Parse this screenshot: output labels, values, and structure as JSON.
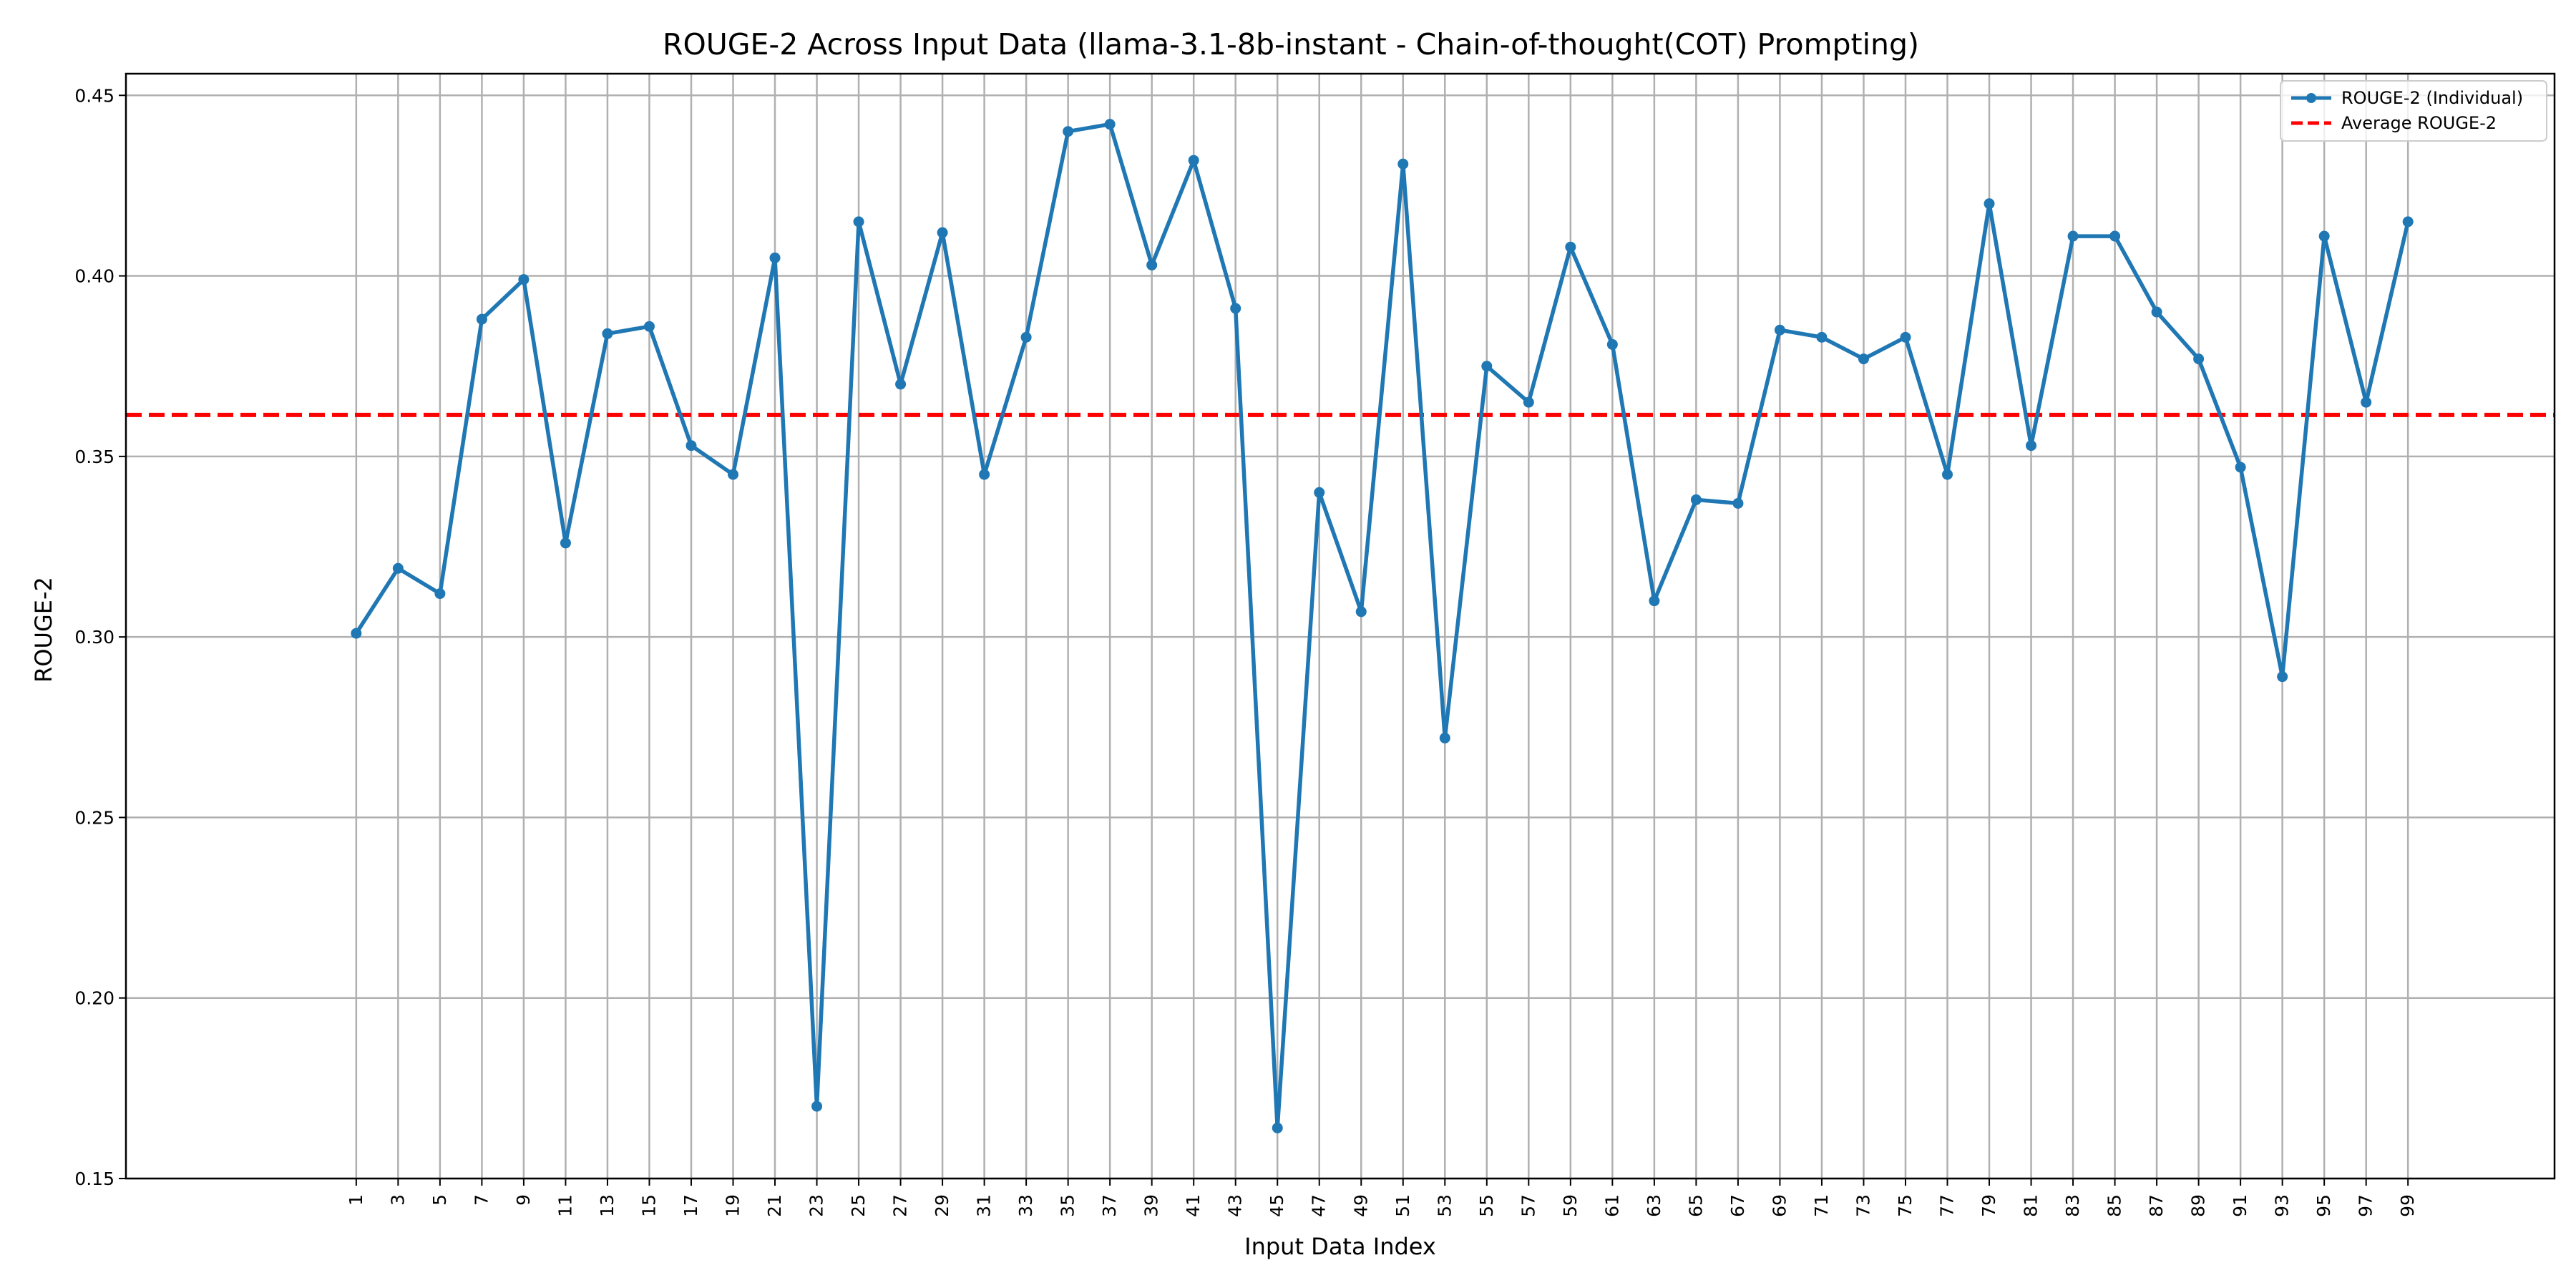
{
  "chart_data": {
    "type": "line",
    "title": "ROUGE-2 Across Input Data (llama-3.1-8b-instant - Chain-of-thought(COT) Prompting)",
    "xlabel": "Input Data Index",
    "ylabel": "ROUGE-2",
    "x": [
      1,
      3,
      5,
      7,
      9,
      11,
      13,
      15,
      17,
      19,
      21,
      23,
      25,
      27,
      29,
      31,
      33,
      35,
      37,
      39,
      41,
      43,
      45,
      47,
      49,
      51,
      53,
      55,
      57,
      59,
      61,
      63,
      65,
      67,
      69,
      71,
      73,
      75,
      77,
      79,
      81,
      83,
      85,
      87,
      89,
      91,
      93,
      95,
      97,
      99
    ],
    "xlim": [
      -10,
      106
    ],
    "ylim": [
      0.15,
      0.456
    ],
    "yticks": [
      0.15,
      0.2,
      0.25,
      0.3,
      0.35,
      0.4,
      0.45
    ],
    "ytick_labels": [
      "0.15",
      "0.20",
      "0.25",
      "0.30",
      "0.35",
      "0.40",
      "0.45"
    ],
    "grid": true,
    "legend_position": "top-right",
    "series": [
      {
        "name": "ROUGE-2 (Individual)",
        "color": "#1f77b4",
        "style": "solid-with-markers",
        "values": [
          0.301,
          0.319,
          0.312,
          0.388,
          0.399,
          0.326,
          0.384,
          0.386,
          0.353,
          0.345,
          0.405,
          0.17,
          0.415,
          0.37,
          0.412,
          0.345,
          0.383,
          0.44,
          0.442,
          0.403,
          0.432,
          0.391,
          0.164,
          0.34,
          0.307,
          0.431,
          0.272,
          0.375,
          0.365,
          0.408,
          0.381,
          0.31,
          0.338,
          0.337,
          0.385,
          0.383,
          0.377,
          0.383,
          0.345,
          0.42,
          0.353,
          0.411,
          0.411,
          0.39,
          0.377,
          0.347,
          0.289,
          0.411,
          0.365,
          0.415
        ]
      },
      {
        "name": "Average ROUGE-2",
        "color": "#ff0000",
        "style": "dashed",
        "value": 0.3615
      }
    ]
  }
}
